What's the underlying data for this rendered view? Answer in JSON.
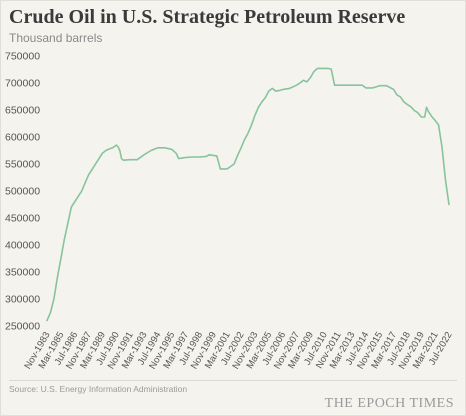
{
  "chart_data": {
    "type": "line",
    "title": "Crude Oil in U.S. Strategic Petroleum Reserve",
    "subtitle": "Thousand barrels",
    "xlabel": "",
    "ylabel": "",
    "ylim": [
      250000,
      750000
    ],
    "yticks": [
      250000,
      300000,
      350000,
      400000,
      450000,
      500000,
      550000,
      600000,
      650000,
      700000,
      750000
    ],
    "ytick_labels": [
      "250000",
      "300000",
      "350000",
      "400000",
      "450000",
      "500000",
      "550000",
      "600000",
      "650000",
      "700000",
      "750000"
    ],
    "xlim": [
      "1983-11",
      "2022-07"
    ],
    "xticks": [
      "1983-11",
      "1985-03",
      "1986-07",
      "1987-11",
      "1989-03",
      "1990-07",
      "1991-11",
      "1993-03",
      "1994-07",
      "1995-11",
      "1997-03",
      "1998-07",
      "1999-11",
      "2001-03",
      "2002-07",
      "2003-11",
      "2005-03",
      "2006-07",
      "2007-11",
      "2009-03",
      "2010-07",
      "2011-11",
      "2013-03",
      "2014-07",
      "2015-11",
      "2017-03",
      "2018-07",
      "2019-11",
      "2021-03",
      "2022-07"
    ],
    "xtick_labels": [
      "Nov-1983",
      "Mar-1985",
      "Jul-1986",
      "Nov-1987",
      "Mar-1989",
      "Jul-1990",
      "Nov-1991",
      "Mar-1993",
      "Jul-1994",
      "Nov-1995",
      "Mar-1997",
      "Jul-1998",
      "Nov-1999",
      "Mar-2001",
      "Jul-2002",
      "Nov-2003",
      "Mar-2005",
      "Jul-2006",
      "Nov-2007",
      "Mar-2009",
      "Jul-2010",
      "Nov-2011",
      "Mar-2013",
      "Jul-2014",
      "Nov-2015",
      "Mar-2017",
      "Jul-2018",
      "Nov-2019",
      "Mar-2021",
      "Jul-2022"
    ],
    "grid": false,
    "series": [
      {
        "color": "#86c49a",
        "x": [
          "1983-11",
          "1984-03",
          "1984-07",
          "1984-11",
          "1985-03",
          "1985-07",
          "1985-11",
          "1986-03",
          "1986-07",
          "1986-11",
          "1987-03",
          "1987-07",
          "1987-11",
          "1988-03",
          "1988-07",
          "1988-11",
          "1989-03",
          "1989-07",
          "1989-11",
          "1990-03",
          "1990-07",
          "1990-09",
          "1990-11",
          "1991-01",
          "1991-03",
          "1991-11",
          "1992-07",
          "1993-03",
          "1993-11",
          "1994-07",
          "1995-03",
          "1995-11",
          "1996-04",
          "1996-07",
          "1997-03",
          "1997-11",
          "1998-07",
          "1999-03",
          "1999-06",
          "1999-11",
          "2000-03",
          "2000-07",
          "2000-10",
          "2001-03",
          "2001-11",
          "2002-03",
          "2002-07",
          "2002-11",
          "2003-03",
          "2003-07",
          "2003-11",
          "2004-03",
          "2004-07",
          "2004-11",
          "2005-03",
          "2005-07",
          "2005-11",
          "2006-03",
          "2006-07",
          "2006-11",
          "2007-03",
          "2007-07",
          "2007-11",
          "2008-03",
          "2008-07",
          "2008-11",
          "2009-03",
          "2009-07",
          "2009-11",
          "2010-03",
          "2010-07",
          "2010-11",
          "2011-03",
          "2011-07",
          "2011-11",
          "2012-03",
          "2012-07",
          "2013-03",
          "2013-11",
          "2014-03",
          "2014-07",
          "2014-11",
          "2015-03",
          "2015-11",
          "2016-07",
          "2017-03",
          "2017-07",
          "2017-11",
          "2018-03",
          "2018-07",
          "2018-11",
          "2019-03",
          "2019-07",
          "2019-11",
          "2020-03",
          "2020-05",
          "2020-07",
          "2020-11",
          "2021-03",
          "2021-07",
          "2021-11",
          "2022-03",
          "2022-07"
        ],
        "values": [
          260000,
          275000,
          300000,
          340000,
          375000,
          410000,
          440000,
          470000,
          480000,
          490000,
          500000,
          515000,
          530000,
          540000,
          550000,
          560000,
          570000,
          575000,
          578000,
          580000,
          585000,
          582000,
          575000,
          560000,
          557000,
          558000,
          558000,
          567000,
          575000,
          580000,
          580000,
          577000,
          570000,
          560000,
          562000,
          563000,
          563000,
          564000,
          567000,
          566000,
          565000,
          541000,
          541000,
          541000,
          550000,
          566000,
          580000,
          595000,
          607000,
          622000,
          640000,
          655000,
          665000,
          673000,
          685000,
          690000,
          685000,
          686000,
          688000,
          689000,
          690000,
          693000,
          696000,
          700000,
          705000,
          702000,
          710000,
          721000,
          727000,
          727000,
          727000,
          727000,
          726000,
          696000,
          696000,
          696000,
          696000,
          696000,
          696000,
          696000,
          691000,
          691000,
          691000,
          695000,
          695000,
          688000,
          678000,
          674000,
          665000,
          660000,
          656000,
          649000,
          645000,
          637000,
          637000,
          655000,
          648000,
          638000,
          631000,
          622000,
          580000,
          520000,
          475000
        ]
      }
    ]
  },
  "source": "Source: U.S. Energy Information Administration",
  "brand": "THE EPOCH TIMES"
}
